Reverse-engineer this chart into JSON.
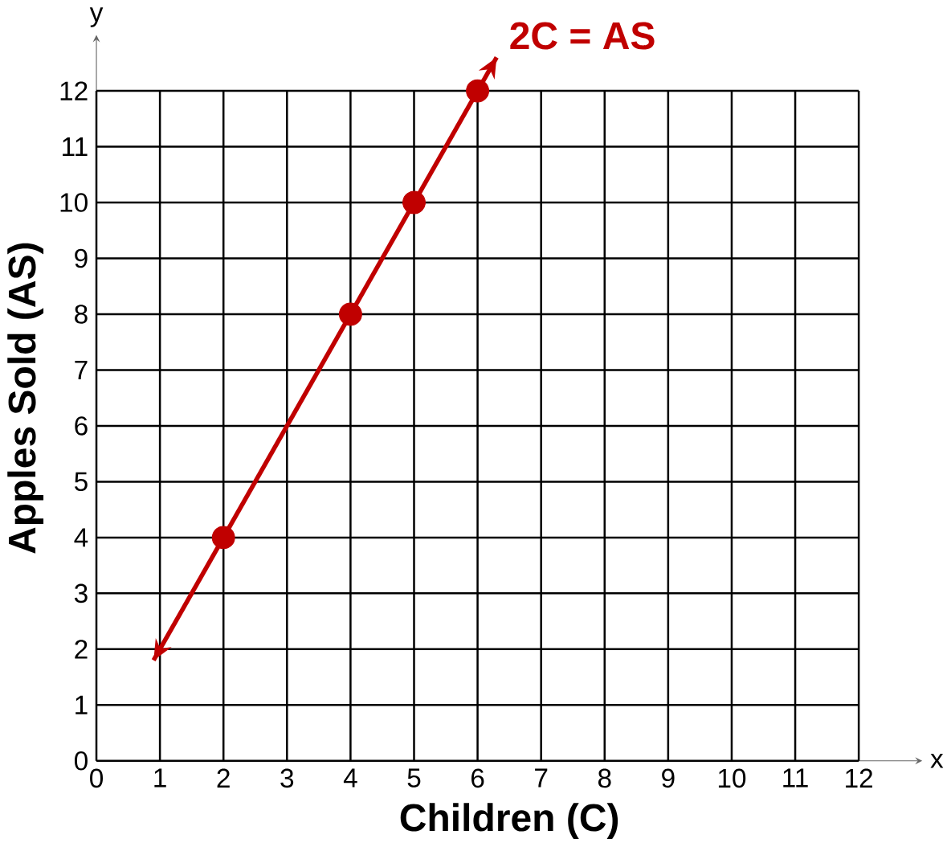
{
  "chart_data": {
    "type": "line",
    "xlabel": "Children (C)",
    "ylabel": "Apples Sold (AS)",
    "xlim": [
      0,
      13
    ],
    "ylim": [
      0,
      13
    ],
    "xticks": [
      0,
      1,
      2,
      3,
      4,
      5,
      6,
      7,
      8,
      9,
      10,
      11,
      12
    ],
    "yticks": [
      0,
      1,
      2,
      3,
      4,
      5,
      6,
      7,
      8,
      9,
      10,
      11,
      12
    ],
    "grid": true,
    "legend": false,
    "annotations": [
      "x",
      "y"
    ],
    "series": [
      {
        "name": "2C = AS",
        "type": "line",
        "color": "#c00000",
        "marker": "none",
        "x": [
          0.9,
          6.3
        ],
        "values": [
          1.8,
          12.6
        ]
      },
      {
        "type": "scatter",
        "color": "#c00000",
        "marker": "circle",
        "x": [
          2,
          4,
          5,
          6
        ],
        "values": [
          4,
          8,
          10,
          12
        ]
      }
    ]
  }
}
